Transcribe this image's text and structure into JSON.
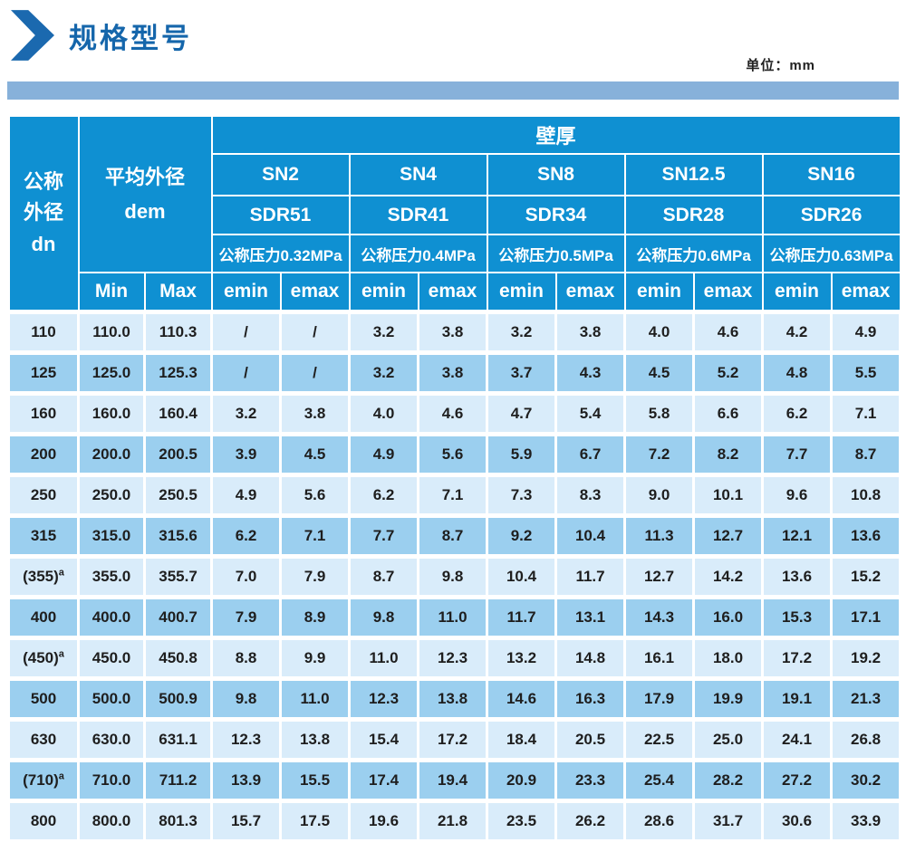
{
  "page": {
    "title": "规格型号",
    "unit_label": "单位：mm"
  },
  "colors": {
    "title_blue": "#1566ab",
    "bar_blue": "#87b1da",
    "header_blue": "#0f90d2",
    "row_light": "#d9ecfa",
    "row_medium": "#9bcfef",
    "text_dark": "#1e1e1e"
  },
  "table": {
    "dn_header": [
      "公称",
      "外径",
      "dn"
    ],
    "dem_header": [
      "平均外径",
      "dem"
    ],
    "wall_header": "壁厚",
    "groups": [
      {
        "sn": "SN2",
        "sdr": "SDR51",
        "pressure": "公称压力0.32MPa"
      },
      {
        "sn": "SN4",
        "sdr": "SDR41",
        "pressure": "公称压力0.4MPa"
      },
      {
        "sn": "SN8",
        "sdr": "SDR34",
        "pressure": "公称压力0.5MPa"
      },
      {
        "sn": "SN12.5",
        "sdr": "SDR28",
        "pressure": "公称压力0.6MPa"
      },
      {
        "sn": "SN16",
        "sdr": "SDR26",
        "pressure": "公称压力0.63MPa"
      }
    ],
    "sub_headers": {
      "min": "Min",
      "max": "Max",
      "emin": "emin",
      "emax": "emax"
    },
    "rows": [
      {
        "dn": "110",
        "min": "110.0",
        "max": "110.3",
        "values": [
          "/",
          "/",
          "3.2",
          "3.8",
          "3.2",
          "3.8",
          "4.0",
          "4.6",
          "4.2",
          "4.9"
        ]
      },
      {
        "dn": "125",
        "min": "125.0",
        "max": "125.3",
        "values": [
          "/",
          "/",
          "3.2",
          "3.8",
          "3.7",
          "4.3",
          "4.5",
          "5.2",
          "4.8",
          "5.5"
        ]
      },
      {
        "dn": "160",
        "min": "160.0",
        "max": "160.4",
        "values": [
          "3.2",
          "3.8",
          "4.0",
          "4.6",
          "4.7",
          "5.4",
          "5.8",
          "6.6",
          "6.2",
          "7.1"
        ]
      },
      {
        "dn": "200",
        "min": "200.0",
        "max": "200.5",
        "values": [
          "3.9",
          "4.5",
          "4.9",
          "5.6",
          "5.9",
          "6.7",
          "7.2",
          "8.2",
          "7.7",
          "8.7"
        ]
      },
      {
        "dn": "250",
        "min": "250.0",
        "max": "250.5",
        "values": [
          "4.9",
          "5.6",
          "6.2",
          "7.1",
          "7.3",
          "8.3",
          "9.0",
          "10.1",
          "9.6",
          "10.8"
        ]
      },
      {
        "dn": "315",
        "min": "315.0",
        "max": "315.6",
        "values": [
          "6.2",
          "7.1",
          "7.7",
          "8.7",
          "9.2",
          "10.4",
          "11.3",
          "12.7",
          "12.1",
          "13.6"
        ]
      },
      {
        "dn": "(355)^a",
        "min": "355.0",
        "max": "355.7",
        "values": [
          "7.0",
          "7.9",
          "8.7",
          "9.8",
          "10.4",
          "11.7",
          "12.7",
          "14.2",
          "13.6",
          "15.2"
        ]
      },
      {
        "dn": "400",
        "min": "400.0",
        "max": "400.7",
        "values": [
          "7.9",
          "8.9",
          "9.8",
          "11.0",
          "11.7",
          "13.1",
          "14.3",
          "16.0",
          "15.3",
          "17.1"
        ]
      },
      {
        "dn": "(450)^a",
        "min": "450.0",
        "max": "450.8",
        "values": [
          "8.8",
          "9.9",
          "11.0",
          "12.3",
          "13.2",
          "14.8",
          "16.1",
          "18.0",
          "17.2",
          "19.2"
        ]
      },
      {
        "dn": "500",
        "min": "500.0",
        "max": "500.9",
        "values": [
          "9.8",
          "11.0",
          "12.3",
          "13.8",
          "14.6",
          "16.3",
          "17.9",
          "19.9",
          "19.1",
          "21.3"
        ]
      },
      {
        "dn": "630",
        "min": "630.0",
        "max": "631.1",
        "values": [
          "12.3",
          "13.8",
          "15.4",
          "17.2",
          "18.4",
          "20.5",
          "22.5",
          "25.0",
          "24.1",
          "26.8"
        ]
      },
      {
        "dn": "(710)^a",
        "min": "710.0",
        "max": "711.2",
        "values": [
          "13.9",
          "15.5",
          "17.4",
          "19.4",
          "20.9",
          "23.3",
          "25.4",
          "28.2",
          "27.2",
          "30.2"
        ]
      },
      {
        "dn": "800",
        "min": "800.0",
        "max": "801.3",
        "values": [
          "15.7",
          "17.5",
          "19.6",
          "21.8",
          "23.5",
          "26.2",
          "28.6",
          "31.7",
          "30.6",
          "33.9"
        ]
      }
    ]
  }
}
